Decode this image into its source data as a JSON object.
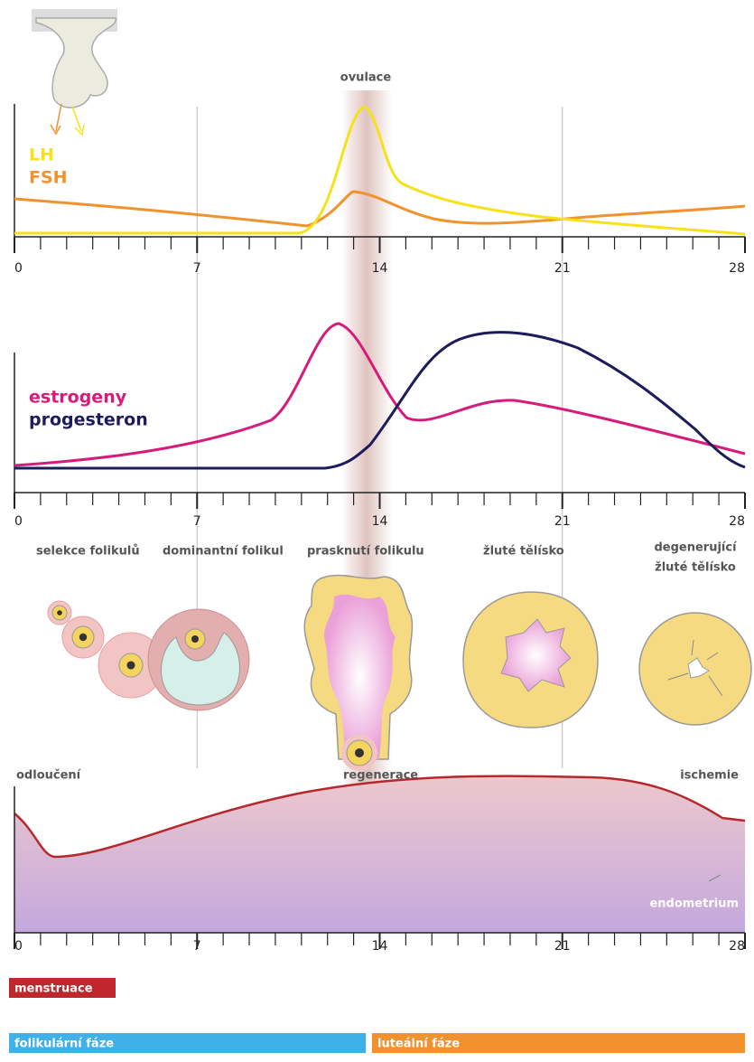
{
  "ovulation_label": "ovulace",
  "pituitary_panel": {
    "legend": [
      "LH",
      "FSH"
    ],
    "ticks": [
      0,
      7,
      14,
      21,
      28
    ]
  },
  "ovarian_hormones_panel": {
    "legend": [
      "estrogeny",
      "progesteron"
    ],
    "ticks": [
      0,
      7,
      14,
      21,
      28
    ]
  },
  "follicle_stages": [
    "selekce folikulů",
    "dominantní folikul",
    "prasknutí folikulu",
    "žluté tělísko",
    "degenerující",
    "žluté tělísko"
  ],
  "endometrium_panel": {
    "stages": [
      "odloučení",
      "regenerace",
      "ischemie"
    ],
    "label": "endometrium",
    "ticks": [
      0,
      7,
      14,
      21,
      28
    ]
  },
  "phases": [
    "menstruace",
    "folikulární fáze",
    "luteální fáze"
  ]
}
